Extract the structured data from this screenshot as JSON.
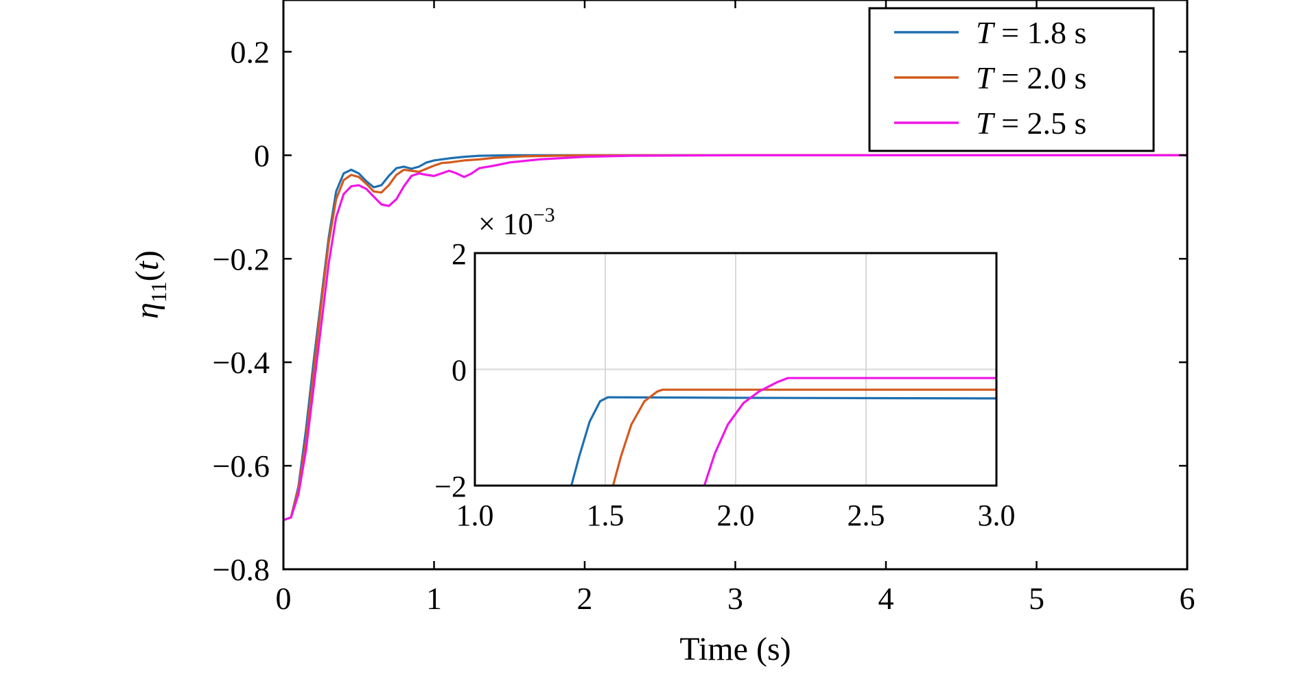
{
  "chart_data": [
    {
      "type": "line",
      "xlabel": "Time (s)",
      "ylabel_symbol": "η",
      "ylabel_subscript": "11",
      "ylabel_arg": "(t)",
      "xlim": [
        0,
        6
      ],
      "ylim": [
        -0.8,
        0.3
      ],
      "grid": false,
      "legend_position": "top-right",
      "xticks": [
        0,
        1,
        2,
        3,
        4,
        5,
        6
      ],
      "xtick_labels": [
        "0",
        "1",
        "2",
        "3",
        "4",
        "5",
        "6"
      ],
      "yticks": [
        -0.8,
        -0.6,
        -0.4,
        -0.2,
        0,
        0.2
      ],
      "ytick_labels": [
        "−0.8",
        "−0.6",
        "−0.4",
        "−0.2",
        "0",
        "0.2"
      ],
      "series": [
        {
          "name_var": "T",
          "name_rest": " = 1.8 s",
          "color": "#1f6fb0",
          "x": [
            0,
            0.05,
            0.1,
            0.15,
            0.2,
            0.25,
            0.3,
            0.35,
            0.4,
            0.45,
            0.5,
            0.55,
            0.6,
            0.65,
            0.7,
            0.75,
            0.8,
            0.85,
            0.9,
            0.95,
            1.0,
            1.05,
            1.1,
            1.2,
            1.3,
            1.5,
            1.8,
            2.2,
            3,
            6
          ],
          "y": [
            -0.705,
            -0.7,
            -0.64,
            -0.53,
            -0.4,
            -0.28,
            -0.16,
            -0.07,
            -0.035,
            -0.028,
            -0.035,
            -0.05,
            -0.062,
            -0.058,
            -0.04,
            -0.025,
            -0.022,
            -0.026,
            -0.022,
            -0.014,
            -0.01,
            -0.008,
            -0.006,
            -0.003,
            -0.001,
            0,
            0,
            0,
            0,
            0
          ]
        },
        {
          "name_var": "T",
          "name_rest": " = 2.0 s",
          "color": "#d35a1e",
          "x": [
            0,
            0.05,
            0.1,
            0.15,
            0.2,
            0.25,
            0.3,
            0.35,
            0.4,
            0.45,
            0.5,
            0.55,
            0.6,
            0.65,
            0.7,
            0.75,
            0.8,
            0.85,
            0.9,
            0.95,
            1.0,
            1.05,
            1.1,
            1.2,
            1.3,
            1.4,
            1.6,
            2.0,
            2.5,
            3,
            6
          ],
          "y": [
            -0.705,
            -0.7,
            -0.645,
            -0.55,
            -0.42,
            -0.29,
            -0.17,
            -0.085,
            -0.048,
            -0.038,
            -0.042,
            -0.055,
            -0.07,
            -0.072,
            -0.058,
            -0.038,
            -0.028,
            -0.03,
            -0.032,
            -0.026,
            -0.02,
            -0.015,
            -0.014,
            -0.01,
            -0.008,
            -0.005,
            -0.002,
            0,
            0,
            0,
            0
          ]
        },
        {
          "name_var": "T",
          "name_rest": " = 2.5 s",
          "color": "#f015e8",
          "x": [
            0,
            0.05,
            0.1,
            0.15,
            0.2,
            0.25,
            0.3,
            0.35,
            0.4,
            0.45,
            0.5,
            0.55,
            0.6,
            0.65,
            0.7,
            0.75,
            0.8,
            0.85,
            0.9,
            0.95,
            1.0,
            1.05,
            1.1,
            1.15,
            1.2,
            1.25,
            1.3,
            1.4,
            1.5,
            1.7,
            2.0,
            2.3,
            3,
            6
          ],
          "y": [
            -0.705,
            -0.7,
            -0.655,
            -0.57,
            -0.45,
            -0.33,
            -0.21,
            -0.12,
            -0.075,
            -0.06,
            -0.058,
            -0.065,
            -0.08,
            -0.095,
            -0.098,
            -0.085,
            -0.06,
            -0.04,
            -0.035,
            -0.038,
            -0.04,
            -0.035,
            -0.03,
            -0.035,
            -0.042,
            -0.035,
            -0.025,
            -0.02,
            -0.014,
            -0.008,
            -0.003,
            -0.001,
            0,
            0
          ]
        }
      ]
    },
    {
      "type": "line",
      "role": "inset",
      "multiplier_prefix": "× 10",
      "multiplier_exp": "−3",
      "xlim": [
        1.0,
        3.0
      ],
      "ylim": [
        -2,
        2
      ],
      "grid": true,
      "xticks": [
        1.0,
        1.5,
        2.0,
        2.5,
        3.0
      ],
      "xtick_labels": [
        "1.0",
        "1.5",
        "2.0",
        "2.5",
        "3.0"
      ],
      "yticks": [
        -2,
        0,
        2
      ],
      "ytick_labels": [
        "−2",
        "0",
        "2"
      ],
      "series": [
        {
          "color": "#1f6fb0",
          "x": [
            1.37,
            1.4,
            1.44,
            1.48,
            1.51,
            2.0,
            3.0
          ],
          "y": [
            -2,
            -1.5,
            -0.9,
            -0.55,
            -0.48,
            -0.49,
            -0.5
          ]
        },
        {
          "color": "#d35a1e",
          "x": [
            1.53,
            1.56,
            1.6,
            1.65,
            1.7,
            1.72,
            2.0,
            3.0
          ],
          "y": [
            -2,
            -1.5,
            -0.95,
            -0.55,
            -0.38,
            -0.35,
            -0.35,
            -0.35
          ]
        },
        {
          "color": "#f015e8",
          "x": [
            1.88,
            1.92,
            1.97,
            2.03,
            2.09,
            2.16,
            2.2,
            2.5,
            3.0
          ],
          "y": [
            -2,
            -1.45,
            -0.95,
            -0.58,
            -0.38,
            -0.22,
            -0.15,
            -0.15,
            -0.15
          ]
        }
      ]
    }
  ]
}
